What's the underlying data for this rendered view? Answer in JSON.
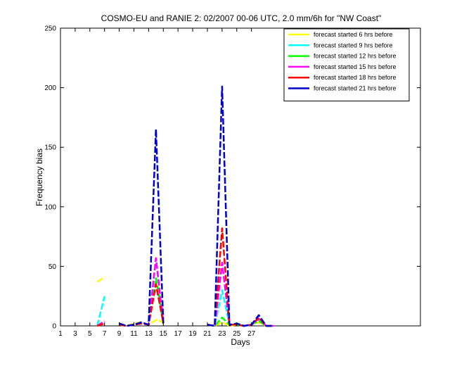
{
  "chart_data": {
    "type": "line",
    "title": "COSMO-EU and RANIE 2: 02/2007 00-06 UTC, 2.0 mm/6h for \"NW Coast\"",
    "xlabel": "Days",
    "ylabel": "Frequency bias",
    "xlim": [
      1,
      50
    ],
    "ylim": [
      0,
      250
    ],
    "xticks": [
      1,
      3,
      5,
      7,
      9,
      11,
      13,
      15,
      17,
      19,
      21,
      23,
      25,
      27
    ],
    "yticks": [
      0,
      50,
      100,
      150,
      200,
      250
    ],
    "grid": false,
    "legend_position": "top-right",
    "series": [
      {
        "name": "forecast started 6 hrs before",
        "color": "#ffff00",
        "dashed": true,
        "points": [
          [
            6,
            37
          ],
          [
            7,
            41
          ],
          [
            null,
            null
          ],
          [
            9,
            1
          ],
          [
            10,
            0
          ],
          [
            11,
            2
          ],
          [
            12,
            3
          ],
          [
            13,
            1
          ],
          [
            14,
            5
          ],
          [
            15,
            3
          ],
          [
            null,
            null
          ],
          [
            21,
            1
          ],
          [
            22,
            0
          ],
          [
            23,
            3
          ],
          [
            24,
            0
          ],
          [
            25,
            1
          ],
          [
            26,
            0
          ],
          [
            27,
            1
          ],
          [
            28,
            3
          ],
          [
            29,
            0
          ],
          [
            30,
            0
          ]
        ]
      },
      {
        "name": "forecast started 9 hrs before",
        "color": "#00ffff",
        "dashed": true,
        "points": [
          [
            6,
            0
          ],
          [
            7,
            25
          ],
          [
            null,
            null
          ],
          [
            9,
            1
          ],
          [
            10,
            0
          ],
          [
            11,
            1
          ],
          [
            12,
            2
          ],
          [
            13,
            1
          ],
          [
            14,
            40
          ],
          [
            15,
            3
          ],
          [
            null,
            null
          ],
          [
            21,
            1
          ],
          [
            22,
            0
          ],
          [
            23,
            30
          ],
          [
            24,
            1
          ],
          [
            25,
            1
          ],
          [
            26,
            0
          ],
          [
            27,
            1
          ],
          [
            28,
            5
          ],
          [
            29,
            0
          ],
          [
            30,
            0
          ]
        ]
      },
      {
        "name": "forecast started 12 hrs before",
        "color": "#00ff00",
        "dashed": true,
        "points": [
          [
            6,
            0
          ],
          [
            7,
            3
          ],
          [
            null,
            null
          ],
          [
            9,
            1
          ],
          [
            10,
            0
          ],
          [
            11,
            1
          ],
          [
            12,
            2
          ],
          [
            13,
            1
          ],
          [
            14,
            40
          ],
          [
            15,
            2
          ],
          [
            null,
            null
          ],
          [
            21,
            1
          ],
          [
            22,
            0
          ],
          [
            23,
            7
          ],
          [
            24,
            1
          ],
          [
            25,
            1
          ],
          [
            26,
            0
          ],
          [
            27,
            1
          ],
          [
            28,
            4
          ],
          [
            29,
            0
          ],
          [
            30,
            0
          ]
        ]
      },
      {
        "name": "forecast started 15 hrs before",
        "color": "#ff00ff",
        "dashed": true,
        "points": [
          [
            6,
            0
          ],
          [
            7,
            4
          ],
          [
            null,
            null
          ],
          [
            9,
            1
          ],
          [
            10,
            0
          ],
          [
            11,
            1
          ],
          [
            12,
            2
          ],
          [
            13,
            1
          ],
          [
            14,
            57
          ],
          [
            15,
            2
          ],
          [
            null,
            null
          ],
          [
            21,
            1
          ],
          [
            22,
            0
          ],
          [
            23,
            53
          ],
          [
            24,
            1
          ],
          [
            25,
            1
          ],
          [
            26,
            0
          ],
          [
            27,
            1
          ],
          [
            28,
            6
          ],
          [
            29,
            0
          ],
          [
            30,
            0
          ]
        ]
      },
      {
        "name": "forecast started 18 hrs before",
        "color": "#ff0000",
        "dashed": true,
        "points": [
          [
            6,
            0
          ],
          [
            7,
            2
          ],
          [
            null,
            null
          ],
          [
            9,
            1
          ],
          [
            10,
            0
          ],
          [
            11,
            1
          ],
          [
            12,
            2
          ],
          [
            13,
            1
          ],
          [
            14,
            35
          ],
          [
            15,
            2
          ],
          [
            null,
            null
          ],
          [
            21,
            1
          ],
          [
            22,
            0
          ],
          [
            23,
            82
          ],
          [
            24,
            1
          ],
          [
            25,
            1
          ],
          [
            26,
            0
          ],
          [
            27,
            1
          ],
          [
            28,
            7
          ],
          [
            29,
            0
          ],
          [
            30,
            0
          ]
        ]
      },
      {
        "name": "forecast started 21 hrs before",
        "color": "#0000cc",
        "dashed": true,
        "points": [
          [
            9,
            2
          ],
          [
            10,
            0
          ],
          [
            11,
            1
          ],
          [
            12,
            3
          ],
          [
            13,
            1
          ],
          [
            14,
            165
          ],
          [
            15,
            2
          ],
          [
            null,
            null
          ],
          [
            21,
            1
          ],
          [
            22,
            0
          ],
          [
            23,
            201
          ],
          [
            24,
            1
          ],
          [
            25,
            2
          ],
          [
            26,
            0
          ],
          [
            27,
            1
          ],
          [
            28,
            9
          ],
          [
            29,
            0
          ],
          [
            30,
            0
          ]
        ]
      }
    ]
  }
}
